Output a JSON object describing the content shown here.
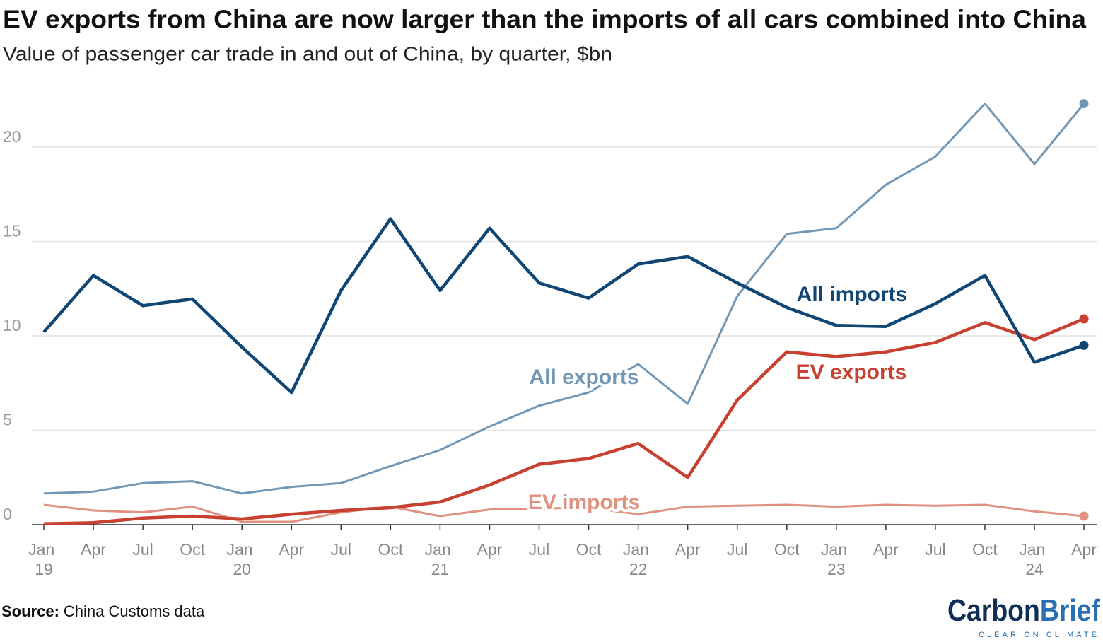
{
  "chart_data": {
    "type": "line",
    "title": "EV exports from China are now larger than the imports of all cars combined into China",
    "subtitle": "Value of passenger car trade in and out of China, by quarter, $bn",
    "categories": [
      "Jan 19",
      "Apr",
      "Jul",
      "Oct",
      "Jan 20",
      "Apr",
      "Jul",
      "Oct",
      "Jan 21",
      "Apr",
      "Jul",
      "Oct",
      "Jan 22",
      "Apr",
      "Jul",
      "Oct",
      "Jan 23",
      "Apr",
      "Jul",
      "Oct",
      "Jan 24",
      "Apr"
    ],
    "series": [
      {
        "name": "EV imports",
        "color": "#e0917f",
        "values": [
          1.05,
          0.75,
          0.65,
          0.95,
          0.15,
          0.15,
          0.65,
          0.95,
          0.45,
          0.8,
          0.85,
          0.9,
          0.55,
          0.95,
          1.0,
          1.05,
          0.95,
          1.05,
          1.0,
          1.05,
          0.7,
          0.45
        ]
      },
      {
        "name": "All exports",
        "color": "#7197b6",
        "values": [
          1.65,
          1.75,
          2.2,
          2.3,
          1.65,
          2.0,
          2.2,
          3.1,
          3.95,
          5.2,
          6.3,
          7.0,
          8.5,
          6.4,
          12.1,
          15.4,
          15.7,
          18.0,
          19.5,
          22.3,
          19.1,
          22.3
        ]
      },
      {
        "name": "EV exports",
        "color": "#c8402f",
        "values": [
          0.05,
          0.1,
          0.35,
          0.45,
          0.3,
          0.55,
          0.75,
          0.9,
          1.2,
          2.1,
          3.2,
          3.5,
          4.3,
          2.5,
          6.6,
          9.15,
          8.9,
          9.15,
          9.65,
          10.7,
          9.8,
          10.9
        ]
      },
      {
        "name": "All imports",
        "color": "#0f4674",
        "values": [
          10.2,
          13.2,
          11.6,
          11.95,
          9.4,
          7.0,
          12.4,
          16.2,
          12.4,
          15.7,
          12.8,
          12.0,
          13.8,
          14.2,
          12.8,
          11.5,
          10.55,
          10.5,
          11.7,
          13.2,
          8.6,
          9.5
        ]
      }
    ],
    "ylim": [
      0,
      23
    ],
    "yticks": [
      0,
      5,
      10,
      15,
      20
    ],
    "grid": true,
    "source": {
      "label": "Source:",
      "text": "China Customs data"
    },
    "logo": {
      "parts": [
        "Carbon",
        "Brief"
      ],
      "tagline": "CLEAR ON CLIMATE"
    }
  }
}
